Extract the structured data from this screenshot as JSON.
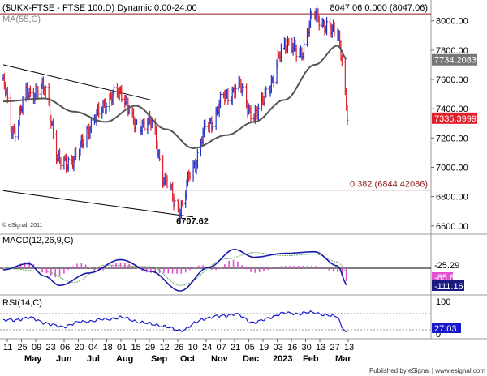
{
  "header": {
    "title": "($UKX-FTSE - FTSE 100,D) Dynamic,0:00-24:00",
    "ma_label": "MA(55,C)",
    "fib_top_label": "8047.06  0.000 (8047.06)",
    "copyright": "© eSignal, 2011"
  },
  "footer": {
    "published": "Published by eSignal | www.esignal.com"
  },
  "colors": {
    "up_bar": "#2233cc",
    "down_bar": "#e0202a",
    "ma_line": "#555555",
    "macd_line": "#1a1aaa",
    "signal_line": "#66aa66",
    "hist": "#e050d0",
    "rsi_line": "#1a1acc",
    "fib_line": "#8b1a1a",
    "last_price_bg": "#e0202a",
    "ma_value_bg": "#777777"
  },
  "chart_data": [
    {
      "type": "line",
      "title": "($UKX-FTSE - FTSE 100,D) Dynamic,0:00-24:00",
      "price_axis": {
        "ticks": [
          "8000.00",
          "7800.00",
          "7600.00",
          "7400.00",
          "7200.00",
          "7000.00",
          "6800.00",
          "6600.00"
        ],
        "ylim": [
          6560,
          8120
        ]
      },
      "x_tick_days": [
        "11",
        "25",
        "09",
        "23",
        "06",
        "20",
        "04",
        "18",
        "01",
        "15",
        "29",
        "12",
        "26",
        "10",
        "24",
        "07",
        "21",
        "05",
        "19",
        "03",
        "16",
        "30",
        "13",
        "27",
        "13"
      ],
      "x_tick_months": [
        "May",
        "Jun",
        "Jul",
        "Aug",
        "Sep",
        "Oct",
        "Nov",
        "Dec",
        "2023",
        "Feb",
        "Mar"
      ],
      "series": [
        {
          "name": "$UKX-FTSE",
          "style": "ohlc-bars",
          "key_points": [
            {
              "x": "2022-05-02",
              "y": 7560
            },
            {
              "x": "2022-05-11",
              "y": 7250
            },
            {
              "x": "2022-05-25",
              "y": 7510
            },
            {
              "x": "2022-06-09",
              "y": 7530
            },
            {
              "x": "2022-06-23",
              "y": 7030
            },
            {
              "x": "2022-07-06",
              "y": 7050
            },
            {
              "x": "2022-07-20",
              "y": 7270
            },
            {
              "x": "2022-08-04",
              "y": 7440
            },
            {
              "x": "2022-08-18",
              "y": 7520
            },
            {
              "x": "2022-09-01",
              "y": 7290
            },
            {
              "x": "2022-09-15",
              "y": 7300
            },
            {
              "x": "2022-09-29",
              "y": 6890
            },
            {
              "x": "2022-10-12",
              "y": 6707.62
            },
            {
              "x": "2022-10-24",
              "y": 7020
            },
            {
              "x": "2022-11-07",
              "y": 7300
            },
            {
              "x": "2022-11-24",
              "y": 7490
            },
            {
              "x": "2022-12-05",
              "y": 7550
            },
            {
              "x": "2022-12-19",
              "y": 7350
            },
            {
              "x": "2023-01-03",
              "y": 7560
            },
            {
              "x": "2023-01-16",
              "y": 7850
            },
            {
              "x": "2023-01-30",
              "y": 7780
            },
            {
              "x": "2023-02-13",
              "y": 8047.06
            },
            {
              "x": "2023-02-27",
              "y": 7930
            },
            {
              "x": "2023-03-06",
              "y": 7940
            },
            {
              "x": "2023-03-10",
              "y": 7750
            },
            {
              "x": "2023-03-15",
              "y": 7335.3999
            }
          ]
        },
        {
          "name": "MA(55,C)",
          "key_points": [
            {
              "x": "2022-05-02",
              "y": 7450
            },
            {
              "x": "2022-06-09",
              "y": 7470
            },
            {
              "x": "2022-07-06",
              "y": 7380
            },
            {
              "x": "2022-08-04",
              "y": 7310
            },
            {
              "x": "2022-09-01",
              "y": 7420
            },
            {
              "x": "2022-09-29",
              "y": 7260
            },
            {
              "x": "2022-10-24",
              "y": 7130
            },
            {
              "x": "2022-11-24",
              "y": 7220
            },
            {
              "x": "2022-12-19",
              "y": 7310
            },
            {
              "x": "2023-01-16",
              "y": 7460
            },
            {
              "x": "2023-02-13",
              "y": 7700
            },
            {
              "x": "2023-03-06",
              "y": 7830
            },
            {
              "x": "2023-03-15",
              "y": 7734.20839
            }
          ]
        }
      ],
      "annotations": {
        "high_label": "8047.06  0.000 (8047.06)",
        "low_label": "6707.62",
        "fib_level": {
          "value": 6844.42086,
          "label": "0.382 (6844.42086)"
        },
        "last_price": "7335.3999",
        "ma_value": "7734.20839",
        "upper_channel": [
          {
            "x": "2022-05-02",
            "y": 7700
          },
          {
            "x": "2022-09-15",
            "y": 7460
          }
        ],
        "lower_channel": [
          {
            "x": "2022-05-02",
            "y": 6840
          },
          {
            "x": "2022-10-24",
            "y": 6660
          }
        ]
      }
    },
    {
      "type": "line",
      "title": "MACD(12,26,9,C)",
      "last_values": [
        "-25.29",
        "-85.86",
        "-111.16"
      ],
      "zero_level": 0,
      "series": [
        {
          "name": "MACD",
          "key_points": [
            {
              "x": "2022-05-02",
              "y": -10
            },
            {
              "x": "2022-05-25",
              "y": 30
            },
            {
              "x": "2022-06-09",
              "y": -50
            },
            {
              "x": "2022-06-23",
              "y": -110
            },
            {
              "x": "2022-07-20",
              "y": -30
            },
            {
              "x": "2022-08-18",
              "y": 55
            },
            {
              "x": "2022-09-15",
              "y": -20
            },
            {
              "x": "2022-10-12",
              "y": -145
            },
            {
              "x": "2022-11-07",
              "y": 5
            },
            {
              "x": "2022-12-01",
              "y": 120
            },
            {
              "x": "2022-12-19",
              "y": 70
            },
            {
              "x": "2023-01-16",
              "y": 95
            },
            {
              "x": "2023-02-13",
              "y": 105
            },
            {
              "x": "2023-03-06",
              "y": 15
            },
            {
              "x": "2023-03-15",
              "y": -111.16
            }
          ]
        },
        {
          "name": "Signal",
          "key_points": [
            {
              "x": "2022-05-02",
              "y": 0
            },
            {
              "x": "2022-06-09",
              "y": -20
            },
            {
              "x": "2022-07-06",
              "y": -90
            },
            {
              "x": "2022-08-04",
              "y": 20
            },
            {
              "x": "2022-09-15",
              "y": 10
            },
            {
              "x": "2022-10-12",
              "y": -110
            },
            {
              "x": "2022-11-24",
              "y": 60
            },
            {
              "x": "2022-12-19",
              "y": 100
            },
            {
              "x": "2023-01-16",
              "y": 80
            },
            {
              "x": "2023-02-13",
              "y": 90
            },
            {
              "x": "2023-03-06",
              "y": 40
            },
            {
              "x": "2023-03-15",
              "y": -25.29
            }
          ]
        }
      ]
    },
    {
      "type": "line",
      "title": "RSI(14,C)",
      "levels": [
        "100",
        "0"
      ],
      "last_value": "27.03",
      "series": [
        {
          "name": "RSI",
          "key_points": [
            {
              "x": "2022-05-02",
              "y": 52
            },
            {
              "x": "2022-05-25",
              "y": 58
            },
            {
              "x": "2022-06-23",
              "y": 38
            },
            {
              "x": "2022-07-20",
              "y": 52
            },
            {
              "x": "2022-08-18",
              "y": 60
            },
            {
              "x": "2022-09-15",
              "y": 45
            },
            {
              "x": "2022-10-12",
              "y": 30
            },
            {
              "x": "2022-11-07",
              "y": 60
            },
            {
              "x": "2022-12-01",
              "y": 68
            },
            {
              "x": "2022-12-19",
              "y": 48
            },
            {
              "x": "2023-01-16",
              "y": 70
            },
            {
              "x": "2023-02-13",
              "y": 72
            },
            {
              "x": "2023-03-06",
              "y": 62
            },
            {
              "x": "2023-03-10",
              "y": 38
            },
            {
              "x": "2023-03-15",
              "y": 27.03
            }
          ]
        }
      ]
    }
  ]
}
